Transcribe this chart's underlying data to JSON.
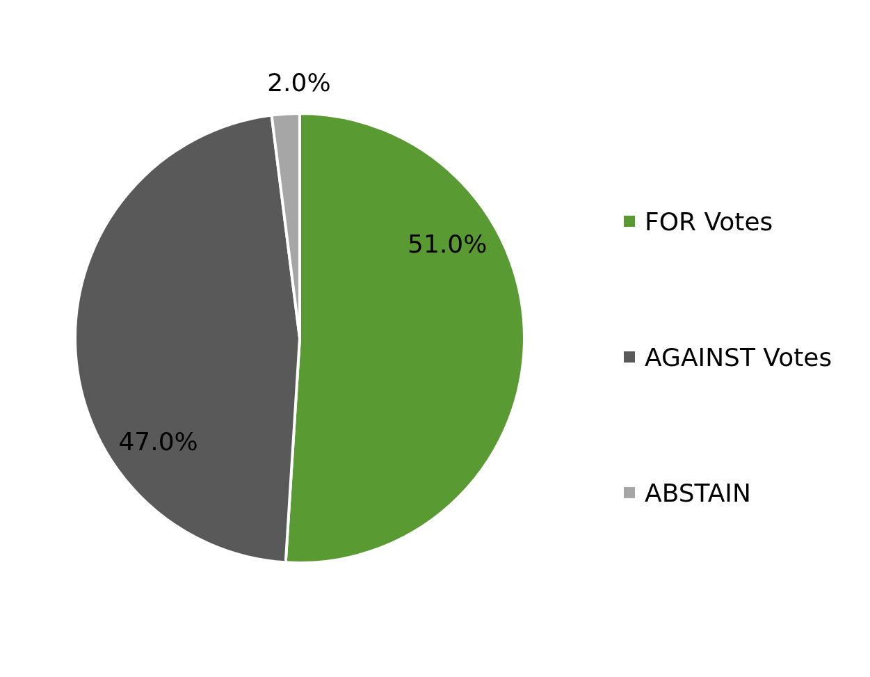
{
  "chart_data": {
    "type": "pie",
    "categories": [
      "FOR Votes",
      "AGAINST Votes",
      "ABSTAIN"
    ],
    "values": [
      51,
      47,
      2
    ],
    "colors": [
      "#5a9a33",
      "#595959",
      "#a6a6a6"
    ],
    "value_labels": [
      "51.0%",
      "47.0%",
      "2.0%"
    ],
    "legend": "right"
  }
}
